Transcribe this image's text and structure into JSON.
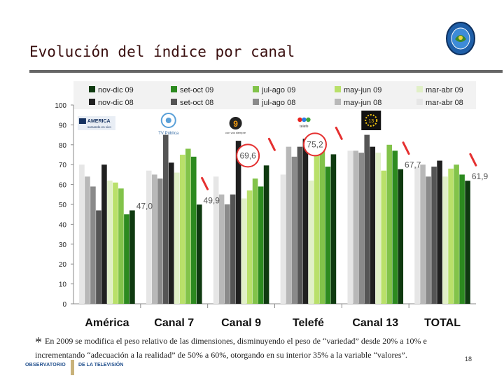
{
  "page_title": "Evolución del índice por canal",
  "footnote": {
    "marker": "*",
    "text": "En 2009 se modifica el peso relativo de las dimensiones,  disminuyendo el peso de “variedad” desde 20% a 10% e incrementando “adecuación a la realidad” de  50% a 60%, otorgando en su interior 35%  a la variable “valores”."
  },
  "page_number": "18",
  "logo": {
    "left": "OBSERVATORIO",
    "right": "DE LA TELEVISIÓN"
  },
  "channel_logos": [
    {
      "category": "América",
      "name": "america-logo",
      "text": "AMERICA",
      "sub": "sumando en vivo"
    },
    {
      "category": "Canal 7",
      "name": "tv-publica-logo",
      "text": "TV Pública"
    },
    {
      "category": "Canal 9",
      "name": "canal-9-logo",
      "text": "9",
      "sub": "con vos siempre"
    },
    {
      "category": "Telefé",
      "name": "telefe-logo",
      "text": "telefe"
    },
    {
      "category": "Canal 13",
      "name": "canal-13-logo",
      "text": "13"
    }
  ],
  "colors": {
    "nov-dic 09": "#0f3a10",
    "set-oct 09": "#2c8a1f",
    "jul-ago 09": "#82c34a",
    "may-jun 09": "#b9e06a",
    "mar-abr 09": "#e1f0c7",
    "nov-dic 08": "#202020",
    "set-oct 08": "#555555",
    "jul-ago 08": "#8a8a8a",
    "may-jun 08": "#b8b8b8",
    "mar-abr 08": "#e6e6e6",
    "callout": "#e53030",
    "slash": "#e53030"
  },
  "chart_data": {
    "type": "bar",
    "categories": [
      "América",
      "Canal 7",
      "Canal 9",
      "Telefé",
      "Canal 13",
      "TOTAL"
    ],
    "legend": [
      [
        "nov-dic 09",
        "set-oct 09",
        "jul-ago 09",
        "may-jun 09",
        "mar-abr 09"
      ],
      [
        "nov-dic 08",
        "set-oct 08",
        "jul-ago 08",
        "may-jun 08",
        "mar-abr 08"
      ]
    ],
    "series_order": [
      "mar-abr 08",
      "may-jun 08",
      "jul-ago 08",
      "set-oct 08",
      "nov-dic 08",
      "mar-abr 09",
      "may-jun 09",
      "jul-ago 09",
      "set-oct 09",
      "nov-dic 09"
    ],
    "series": [
      {
        "name": "mar-abr 08",
        "values": [
          70,
          67,
          64,
          65,
          77,
          69
        ]
      },
      {
        "name": "may-jun 08",
        "values": [
          64,
          65,
          55,
          79,
          77,
          70
        ]
      },
      {
        "name": "jul-ago 08",
        "values": [
          59,
          63,
          50,
          74,
          76,
          64
        ]
      },
      {
        "name": "set-oct 08",
        "values": [
          47,
          85,
          55,
          79,
          85,
          69
        ]
      },
      {
        "name": "nov-dic 08",
        "values": [
          70,
          71,
          82,
          83,
          79,
          72
        ]
      },
      {
        "name": "mar-abr 09",
        "values": [
          62,
          66,
          53,
          62,
          76,
          64
        ]
      },
      {
        "name": "may-jun 09",
        "values": [
          61,
          75,
          57,
          84,
          67,
          68
        ]
      },
      {
        "name": "jul-ago 09",
        "values": [
          58,
          78,
          63,
          77,
          80,
          70
        ]
      },
      {
        "name": "set-oct 09",
        "values": [
          45,
          74,
          59,
          69,
          77,
          65
        ]
      },
      {
        "name": "nov-dic 09",
        "values": [
          47.0,
          49.9,
          69.6,
          75.2,
          67.7,
          61.9
        ]
      }
    ],
    "data_labels": [
      {
        "category": "América",
        "text": "47,0",
        "circled": false
      },
      {
        "category": "Canal 7",
        "text": "49,9",
        "circled": false
      },
      {
        "category": "Canal 9",
        "text": "69,6",
        "circled": true
      },
      {
        "category": "Telefé",
        "text": "75,2",
        "circled": true
      },
      {
        "category": "Canal 13",
        "text": "67,7",
        "circled": false
      },
      {
        "category": "TOTAL",
        "text": "61,9",
        "circled": false
      }
    ],
    "ylim": [
      0,
      100
    ],
    "yticks": [
      0,
      10,
      20,
      30,
      40,
      50,
      60,
      70,
      80,
      90,
      100
    ],
    "grid": false,
    "legend_position": "top"
  }
}
